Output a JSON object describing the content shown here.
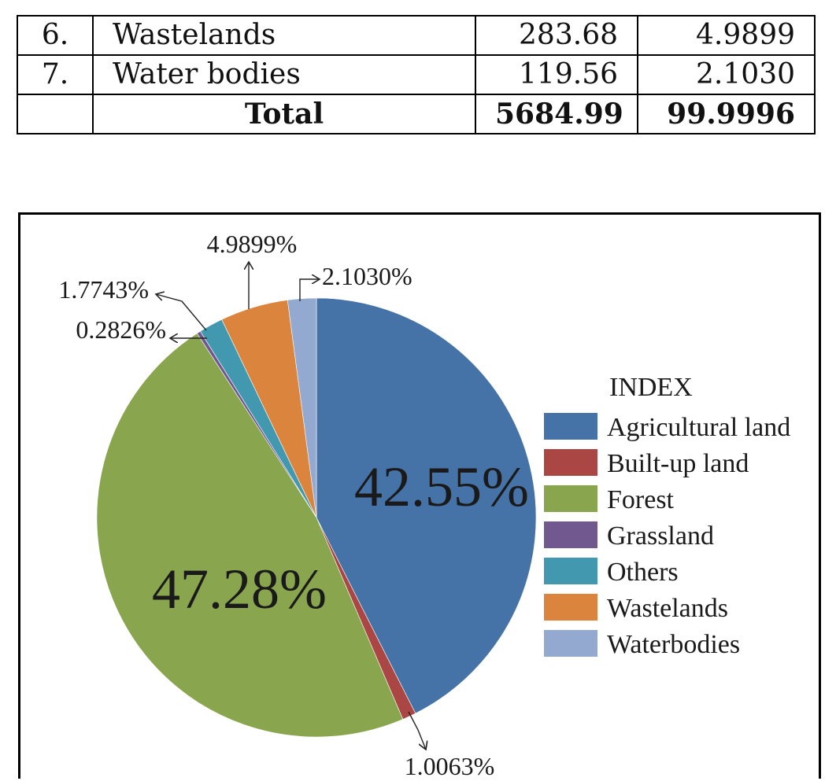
{
  "table": {
    "rows": [
      {
        "sno": "6.",
        "name": "Wastelands",
        "area": "283.68",
        "percent": "4.9899"
      },
      {
        "sno": "7.",
        "name": "Water bodies",
        "area": "119.56",
        "percent": "2.1030"
      }
    ],
    "total": {
      "label": "Total",
      "area": "5684.99",
      "percent": "99.9996"
    }
  },
  "chart_data": {
    "type": "pie",
    "legend_title": "INDEX",
    "legend_position": "right",
    "slices": [
      {
        "name": "Agricultural land",
        "value": 42.55,
        "label": "42.55%",
        "color": "#4572a7"
      },
      {
        "name": "Built-up land",
        "value": 1.0063,
        "label": "1.0063%",
        "color": "#aa4643"
      },
      {
        "name": "Forest",
        "value": 47.28,
        "label": "47.28%",
        "color": "#89a54e"
      },
      {
        "name": "Grassland",
        "value": 0.2826,
        "label": "0.2826%",
        "color": "#71588f"
      },
      {
        "name": "Others",
        "value": 1.7743,
        "label": "1.7743%",
        "color": "#4198af"
      },
      {
        "name": "Wastelands",
        "value": 4.9899,
        "label": "4.9899%",
        "color": "#db843d"
      },
      {
        "name": "Waterbodies",
        "value": 2.103,
        "label": "2.1030%",
        "color": "#93a9cf"
      }
    ]
  }
}
